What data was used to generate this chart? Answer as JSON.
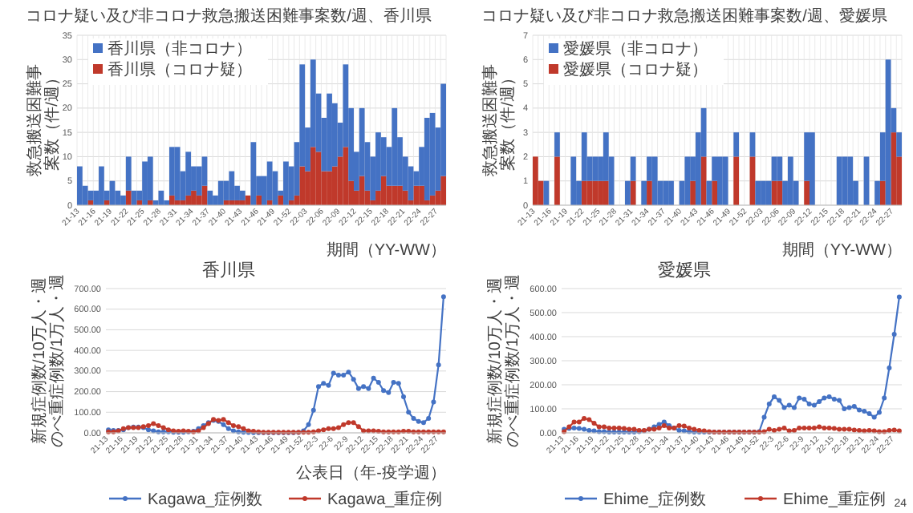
{
  "chart_data": [
    {
      "type": "bar",
      "stacked": true,
      "title": "コロナ疑い及び非コロナ救急搬送困難事案数/週、香川県",
      "xlabel": "期間（YY-WW）",
      "ylabel": "救急搬送困難事案数（件/週）",
      "ylim": [
        0,
        35
      ],
      "yticks": [
        0,
        5,
        10,
        15,
        20,
        25,
        30,
        35
      ],
      "grid": true,
      "legend": "top left",
      "categories": [
        "21-13",
        null,
        null,
        "21-16",
        null,
        null,
        "21-19",
        null,
        null,
        "21-22",
        null,
        null,
        "21-25",
        null,
        null,
        "21-28",
        null,
        null,
        "21-31",
        null,
        null,
        "21-34",
        null,
        null,
        "21-37",
        null,
        null,
        "21-40",
        null,
        null,
        "21-43",
        null,
        null,
        "21-46",
        null,
        null,
        "21-49",
        null,
        null,
        "21-52",
        null,
        null,
        "22-03",
        null,
        null,
        "22-06",
        null,
        null,
        "22-09",
        null,
        null,
        "22-12",
        null,
        null,
        "22-15",
        null,
        null,
        "22-18",
        null,
        null,
        "22-21",
        null,
        null,
        "22-24",
        null,
        null,
        "22-27",
        null
      ],
      "series": [
        {
          "name": "香川県（コロナ疑）",
          "color": "#c0392b",
          "values": [
            0,
            0,
            1,
            0,
            0,
            1,
            0,
            0,
            0,
            3,
            0,
            1,
            0,
            1,
            0,
            0,
            0,
            2,
            1,
            1,
            2,
            3,
            2,
            4,
            0,
            0,
            0,
            1,
            1,
            1,
            1,
            2,
            0,
            2,
            0,
            1,
            0,
            2,
            0,
            1,
            2,
            8,
            7,
            12,
            11,
            7,
            7,
            8,
            10,
            12,
            5,
            3,
            6,
            3,
            1,
            3,
            6,
            4,
            4,
            4,
            3,
            1,
            4,
            4,
            1,
            2,
            3,
            6
          ]
        },
        {
          "name": "香川県（非コロナ）",
          "color": "#4472c4",
          "values": [
            8,
            4,
            2,
            3,
            8,
            2,
            5,
            3,
            2,
            7,
            3,
            2,
            9,
            9,
            1,
            3,
            1,
            10,
            11,
            6,
            9,
            5,
            6,
            6,
            3,
            2,
            5,
            4,
            6,
            3,
            2,
            0,
            13,
            4,
            6,
            8,
            7,
            1,
            9,
            7,
            11,
            21,
            9,
            18,
            12,
            11,
            16,
            13,
            7,
            17,
            15,
            8,
            14,
            10,
            9,
            12,
            8,
            8,
            16,
            10,
            7,
            7,
            3,
            8,
            17,
            17,
            13,
            19
          ]
        }
      ]
    },
    {
      "type": "bar",
      "stacked": true,
      "title": "コロナ疑い及び非コロナ救急搬送困難事案数/週、愛媛県",
      "xlabel": "期間（YY-WW）",
      "ylabel": "救急搬送困難事案数（件/週）",
      "ylim": [
        0,
        7
      ],
      "yticks": [
        0,
        1,
        2,
        3,
        4,
        5,
        6,
        7
      ],
      "grid": true,
      "legend": "top left",
      "categories": [
        "21-13",
        null,
        null,
        "21-16",
        null,
        null,
        "21-19",
        null,
        null,
        "21-22",
        null,
        null,
        "21-25",
        null,
        null,
        "21-28",
        null,
        null,
        "21-31",
        null,
        null,
        "21-34",
        null,
        null,
        "21-37",
        null,
        null,
        "21-40",
        null,
        null,
        "21-43",
        null,
        null,
        "21-46",
        null,
        null,
        "21-49",
        null,
        null,
        "21-52",
        null,
        null,
        "22-03",
        null,
        null,
        "22-06",
        null,
        null,
        "22-09",
        null,
        null,
        "22-12",
        null,
        null,
        "22-15",
        null,
        null,
        "22-18",
        null,
        null,
        "22-21",
        null,
        null,
        "22-24",
        null,
        null,
        "22-27",
        null
      ],
      "series": [
        {
          "name": "愛媛県（コロナ疑）",
          "color": "#c0392b",
          "values": [
            2,
            1,
            0,
            0,
            2,
            0,
            0,
            0,
            0,
            1,
            1,
            1,
            1,
            1,
            0,
            0,
            0,
            0,
            1,
            0,
            0,
            1,
            0,
            0,
            0,
            0,
            0,
            0,
            0,
            1,
            0,
            2,
            0,
            1,
            0,
            0,
            0,
            2,
            0,
            0,
            2,
            0,
            0,
            0,
            1,
            1,
            0,
            0,
            0,
            0,
            1,
            0,
            0,
            0,
            0,
            0,
            0,
            0,
            0,
            0,
            0,
            0,
            0,
            0,
            1,
            0,
            3,
            2
          ]
        },
        {
          "name": "愛媛県（非コロナ）",
          "color": "#4472c4",
          "values": [
            0,
            0,
            1,
            0,
            1,
            0,
            0,
            2,
            1,
            2,
            1,
            1,
            1,
            2,
            2,
            0,
            0,
            1,
            1,
            0,
            1,
            1,
            2,
            1,
            1,
            1,
            0,
            1,
            2,
            1,
            3,
            2,
            1,
            1,
            2,
            2,
            0,
            1,
            0,
            0,
            1,
            1,
            1,
            1,
            1,
            1,
            1,
            2,
            1,
            0,
            2,
            3,
            0,
            0,
            0,
            0,
            2,
            2,
            2,
            1,
            0,
            2,
            0,
            1,
            2,
            6,
            1,
            1
          ]
        }
      ]
    },
    {
      "type": "line",
      "title": "香川県",
      "xlabel": "公表日（年-疫学週）",
      "ylabel": "新規症例数/10万人・週のべ重症例数/1万人・週",
      "ylim": [
        0,
        700
      ],
      "yticks": [
        {
          "value": 0,
          "label": "0.00"
        },
        {
          "value": 100,
          "label": "100.00"
        },
        {
          "value": 200,
          "label": "200.00"
        },
        {
          "value": 300,
          "label": "300.00"
        },
        {
          "value": 400,
          "label": "400.00"
        },
        {
          "value": 500,
          "label": "500.00"
        },
        {
          "value": 600,
          "label": "600.00"
        },
        {
          "value": 700,
          "label": "700.00"
        }
      ],
      "grid": "y",
      "legend": "bottom",
      "marker": "circle",
      "line_style": "solid",
      "categories": [
        "21-13",
        null,
        null,
        "21-16",
        null,
        null,
        "21-19",
        null,
        null,
        "21-22",
        null,
        null,
        "21-25",
        null,
        null,
        "21-28",
        null,
        null,
        "21-31",
        null,
        null,
        "21-34",
        null,
        null,
        "21-37",
        null,
        null,
        "21-40",
        null,
        null,
        "21-43",
        null,
        null,
        "21-46",
        null,
        null,
        "21-49",
        null,
        null,
        "21-52",
        null,
        null,
        "22-3",
        null,
        null,
        "22-6",
        null,
        null,
        "22-9",
        null,
        null,
        "22-12",
        null,
        null,
        "22-15",
        null,
        null,
        "22-18",
        null,
        null,
        "22-21",
        null,
        null,
        "22-24",
        null,
        null,
        "22-27",
        null
      ],
      "series": [
        {
          "name": "Kagawa_症例数",
          "color": "#4472c4",
          "values": [
            15,
            12,
            12,
            15,
            25,
            28,
            28,
            25,
            15,
            10,
            5,
            5,
            5,
            3,
            3,
            3,
            5,
            8,
            20,
            35,
            50,
            60,
            55,
            40,
            20,
            10,
            5,
            3,
            2,
            1,
            1,
            1,
            1,
            1,
            1,
            1,
            1,
            1,
            2,
            10,
            40,
            110,
            225,
            240,
            230,
            290,
            280,
            280,
            295,
            260,
            215,
            225,
            215,
            265,
            245,
            205,
            195,
            245,
            240,
            175,
            100,
            70,
            55,
            50,
            70,
            150,
            330,
            660
          ]
        },
        {
          "name": "Kagawa_重症例",
          "color": "#c0392b",
          "values": [
            5,
            5,
            10,
            20,
            25,
            25,
            25,
            30,
            35,
            45,
            35,
            25,
            15,
            10,
            8,
            10,
            8,
            5,
            10,
            25,
            45,
            65,
            60,
            65,
            50,
            35,
            30,
            20,
            10,
            8,
            5,
            3,
            3,
            3,
            3,
            3,
            3,
            3,
            3,
            3,
            3,
            5,
            10,
            15,
            20,
            20,
            25,
            40,
            50,
            50,
            30,
            10,
            10,
            10,
            8,
            5,
            5,
            5,
            5,
            8,
            8,
            5,
            5,
            5,
            5,
            5,
            5,
            5
          ]
        }
      ]
    },
    {
      "type": "line",
      "title": "愛媛県",
      "ylabel": "新規症例数/10万人・週のべ重症例数/1万人・週",
      "ylim": [
        0,
        600
      ],
      "yticks": [
        {
          "value": 0,
          "label": "0.00"
        },
        {
          "value": 100,
          "label": "100.00"
        },
        {
          "value": 200,
          "label": "200.00"
        },
        {
          "value": 300,
          "label": "300.00"
        },
        {
          "value": 400,
          "label": "400.00"
        },
        {
          "value": 500,
          "label": "500.00"
        },
        {
          "value": 600,
          "label": "600.00"
        }
      ],
      "grid": "y",
      "legend": "bottom",
      "marker": "circle",
      "line_style": "solid",
      "annotations": [
        "24"
      ],
      "categories": [
        "21-13",
        null,
        null,
        "21-16",
        null,
        null,
        "21-19",
        null,
        null,
        "21-22",
        null,
        null,
        "21-25",
        null,
        null,
        "21-28",
        null,
        null,
        "21-31",
        null,
        null,
        "21-34",
        null,
        null,
        "21-37",
        null,
        null,
        "21-40",
        null,
        null,
        "21-43",
        null,
        null,
        "21-46",
        null,
        null,
        "21-49",
        null,
        null,
        "21-52",
        null,
        null,
        "22-3",
        null,
        null,
        "22-6",
        null,
        null,
        "22-9",
        null,
        null,
        "22-12",
        null,
        null,
        "22-15",
        null,
        null,
        "22-18",
        null,
        null,
        "22-21",
        null,
        null,
        "22-24",
        null,
        null,
        "22-27",
        null
      ],
      "series": [
        {
          "name": "Ehime_症例数",
          "color": "#4472c4",
          "values": [
            15,
            18,
            20,
            18,
            15,
            10,
            8,
            5,
            5,
            3,
            3,
            3,
            3,
            3,
            3,
            5,
            8,
            15,
            25,
            35,
            45,
            30,
            20,
            10,
            8,
            5,
            3,
            3,
            3,
            3,
            3,
            3,
            3,
            3,
            3,
            3,
            3,
            3,
            3,
            5,
            65,
            120,
            150,
            135,
            105,
            115,
            105,
            145,
            140,
            120,
            115,
            130,
            145,
            150,
            140,
            135,
            100,
            105,
            110,
            95,
            90,
            80,
            65,
            85,
            145,
            270,
            410,
            565
          ]
        },
        {
          "name": "Ehime_重症例",
          "color": "#c0392b",
          "values": [
            5,
            25,
            45,
            45,
            60,
            55,
            40,
            25,
            25,
            20,
            20,
            20,
            18,
            15,
            15,
            10,
            10,
            15,
            15,
            20,
            30,
            20,
            20,
            30,
            28,
            20,
            15,
            10,
            8,
            5,
            3,
            3,
            3,
            3,
            3,
            3,
            3,
            3,
            3,
            3,
            5,
            15,
            10,
            15,
            20,
            8,
            10,
            20,
            20,
            20,
            20,
            25,
            20,
            20,
            18,
            15,
            15,
            15,
            12,
            10,
            8,
            10,
            8,
            5,
            5,
            10,
            12,
            8
          ]
        }
      ]
    }
  ]
}
